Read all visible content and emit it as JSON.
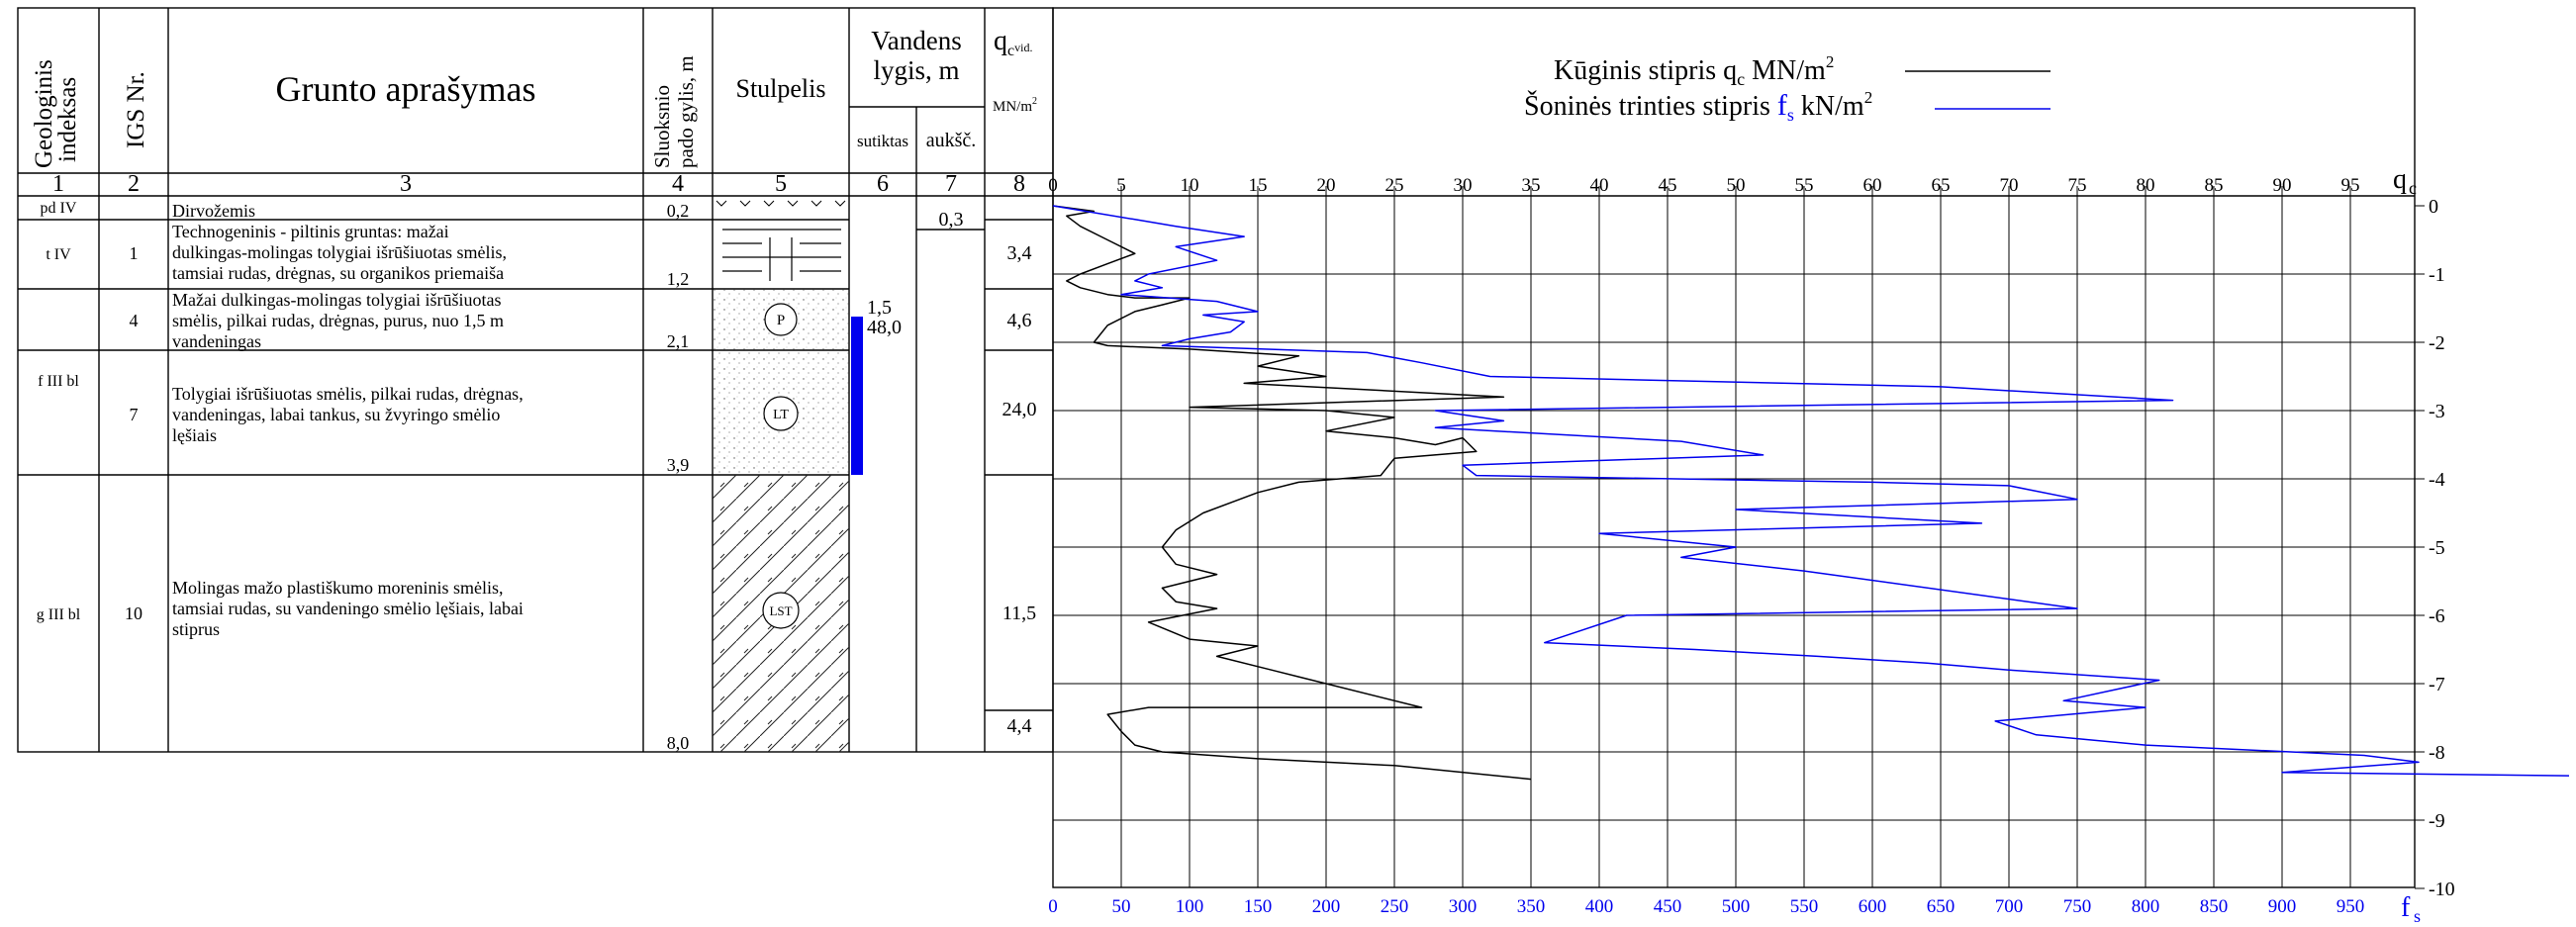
{
  "headers": {
    "col1": [
      "Geologinis",
      "indeksas"
    ],
    "col2": "IGS Nr.",
    "col3": "Grunto aprašymas",
    "col4": [
      "Sluoksnio",
      "pado gylis, m"
    ],
    "col5": "Stulpelis",
    "col6_7": [
      "Vandens",
      "lygis, m"
    ],
    "col6": "sutiktas",
    "col7": "aukšč.",
    "col8_main": "q",
    "col8_sub": "c",
    "col8_sub2": "vid.",
    "col8_unit": "MN/m",
    "col8_unit_sup": "2"
  },
  "column_numbers": [
    "1",
    "2",
    "3",
    "4",
    "5",
    "6",
    "7",
    "8"
  ],
  "legend": {
    "qc_label": "Kūginis stipris  q",
    "qc_sub": "c",
    "qc_unit": " MN/m",
    "qc_sup": "2",
    "fs_label": "Šoninės trinties stipris  ",
    "fs_sym": "f",
    "fs_sub": "s",
    "fs_unit": " kN/m",
    "fs_sup": "2",
    "qc_color": "#000000",
    "fs_color": "#0000ee"
  },
  "layers": [
    {
      "index": "pd IV",
      "igs": "",
      "description": [
        "Dirvožemis"
      ],
      "depth": "0,2",
      "qc": "",
      "symbol": ""
    },
    {
      "index": "t IV",
      "igs": "1",
      "description": [
        "Technogeninis - piltinis gruntas: mažai",
        "dulkingas-molingas tolygiai išrūšiuotas smėlis,",
        "tamsiai rudas, drėgnas, su organikos priemaiša"
      ],
      "depth": "1,2",
      "qc": "3,4",
      "symbol": ""
    },
    {
      "index": "f III bl",
      "igs": "4",
      "description": [
        "Mažai dulkingas-molingas tolygiai išrūšiuotas",
        "smėlis, pilkai rudas, drėgnas, purus, nuo 1,5 m",
        "vandeningas"
      ],
      "depth": "2,1",
      "qc": "4,6",
      "symbol": "P"
    },
    {
      "index": "",
      "igs": "7",
      "description": [
        "Tolygiai išrūšiuotas smėlis, pilkai rudas, drėgnas,",
        "vandeningas, labai tankus, su žvyringo smėlio",
        "lęšiais"
      ],
      "depth": "3,9",
      "qc": "24,0",
      "symbol": "LT"
    },
    {
      "index": "g III bl",
      "igs": "10",
      "description": [
        "Molingas mažo plastiškumo moreninis smėlis,",
        "tamsiai rudas, su vandeningo smėlio lęšiais, labai",
        "stiprus"
      ],
      "depth": "8,0",
      "qc": "11,5",
      "symbol": "LST"
    }
  ],
  "extra_qc": "4,4",
  "water": {
    "encountered": "1,5",
    "risen": "0,3",
    "extra": "48,0"
  },
  "chart_data": {
    "type": "line",
    "x_top_label": "q",
    "x_top_sub": "c",
    "x_bottom_label": "f",
    "x_bottom_sub": "s",
    "x_top_ticks": [
      "0",
      "5",
      "10",
      "15",
      "20",
      "25",
      "30",
      "35",
      "40",
      "45",
      "50",
      "55",
      "60",
      "65",
      "70",
      "75",
      "80",
      "85",
      "90",
      "95"
    ],
    "x_bottom_ticks": [
      "0",
      "50",
      "100",
      "150",
      "200",
      "250",
      "300",
      "350",
      "400",
      "450",
      "500",
      "550",
      "600",
      "650",
      "700",
      "750",
      "800",
      "850",
      "900",
      "950"
    ],
    "y_ticks": [
      "0",
      "-1",
      "-2",
      "-3",
      "-4",
      "-5",
      "-6",
      "-7",
      "-8",
      "-9",
      "-10"
    ],
    "qc_range": [
      0,
      100
    ],
    "fs_range": [
      0,
      1000
    ],
    "depth_range": [
      0,
      -10
    ],
    "grid": true,
    "series": [
      {
        "name": "Kūginis stipris",
        "unit": "MN/m2",
        "color": "#000000",
        "points": [
          [
            0,
            0
          ],
          [
            3,
            0.08
          ],
          [
            1,
            0.15
          ],
          [
            2,
            0.3
          ],
          [
            4,
            0.5
          ],
          [
            6,
            0.7
          ],
          [
            4,
            0.85
          ],
          [
            2,
            1.0
          ],
          [
            1,
            1.1
          ],
          [
            2,
            1.2
          ],
          [
            4,
            1.3
          ],
          [
            6,
            1.35
          ],
          [
            10,
            1.35
          ],
          [
            8,
            1.45
          ],
          [
            6,
            1.55
          ],
          [
            4,
            1.75
          ],
          [
            3,
            2.0
          ],
          [
            4,
            2.05
          ],
          [
            10,
            2.1
          ],
          [
            18,
            2.2
          ],
          [
            15,
            2.35
          ],
          [
            20,
            2.5
          ],
          [
            14,
            2.6
          ],
          [
            33,
            2.8
          ],
          [
            10,
            2.95
          ],
          [
            20,
            3.0
          ],
          [
            25,
            3.1
          ],
          [
            20,
            3.3
          ],
          [
            25,
            3.4
          ],
          [
            28,
            3.5
          ],
          [
            30,
            3.4
          ],
          [
            31,
            3.6
          ],
          [
            25,
            3.7
          ],
          [
            24,
            3.95
          ],
          [
            18,
            4.05
          ],
          [
            15,
            4.2
          ],
          [
            11,
            4.5
          ],
          [
            9,
            4.75
          ],
          [
            8,
            5.0
          ],
          [
            9,
            5.25
          ],
          [
            12,
            5.4
          ],
          [
            8,
            5.6
          ],
          [
            9,
            5.8
          ],
          [
            12,
            5.9
          ],
          [
            7,
            6.1
          ],
          [
            10,
            6.35
          ],
          [
            15,
            6.45
          ],
          [
            12,
            6.6
          ],
          [
            16,
            6.8
          ],
          [
            18,
            6.9
          ],
          [
            27,
            7.35
          ],
          [
            7,
            7.35
          ],
          [
            4,
            7.45
          ],
          [
            5,
            7.7
          ],
          [
            6,
            7.9
          ],
          [
            8,
            8.0
          ],
          [
            15,
            8.1
          ],
          [
            25,
            8.2
          ],
          [
            35,
            8.4
          ]
        ]
      },
      {
        "name": "Šoninės trinties stipris",
        "unit": "kN/m2",
        "color": "#0000ee",
        "points": [
          [
            0,
            0
          ],
          [
            60,
            0.2
          ],
          [
            90,
            0.3
          ],
          [
            140,
            0.45
          ],
          [
            90,
            0.6
          ],
          [
            120,
            0.8
          ],
          [
            70,
            1.0
          ],
          [
            60,
            1.1
          ],
          [
            80,
            1.2
          ],
          [
            50,
            1.3
          ],
          [
            120,
            1.4
          ],
          [
            140,
            1.5
          ],
          [
            150,
            1.55
          ],
          [
            110,
            1.6
          ],
          [
            140,
            1.7
          ],
          [
            130,
            1.85
          ],
          [
            100,
            1.95
          ],
          [
            80,
            2.05
          ],
          [
            230,
            2.15
          ],
          [
            270,
            2.3
          ],
          [
            320,
            2.5
          ],
          [
            650,
            2.65
          ],
          [
            820,
            2.85
          ],
          [
            280,
            3.0
          ],
          [
            330,
            3.15
          ],
          [
            280,
            3.25
          ],
          [
            460,
            3.45
          ],
          [
            520,
            3.65
          ],
          [
            300,
            3.8
          ],
          [
            310,
            3.95
          ],
          [
            600,
            4.05
          ],
          [
            700,
            4.1
          ],
          [
            750,
            4.3
          ],
          [
            500,
            4.45
          ],
          [
            680,
            4.65
          ],
          [
            400,
            4.8
          ],
          [
            500,
            5.0
          ],
          [
            460,
            5.15
          ],
          [
            550,
            5.35
          ],
          [
            750,
            5.9
          ],
          [
            420,
            6.0
          ],
          [
            360,
            6.4
          ],
          [
            470,
            6.5
          ],
          [
            560,
            6.6
          ],
          [
            640,
            6.7
          ],
          [
            700,
            6.8
          ],
          [
            810,
            6.95
          ],
          [
            740,
            7.25
          ],
          [
            800,
            7.35
          ],
          [
            690,
            7.55
          ],
          [
            720,
            7.75
          ],
          [
            800,
            7.9
          ],
          [
            960,
            8.05
          ],
          [
            1000,
            8.15
          ],
          [
            900,
            8.3
          ],
          [
            1150,
            8.35
          ]
        ]
      }
    ]
  }
}
